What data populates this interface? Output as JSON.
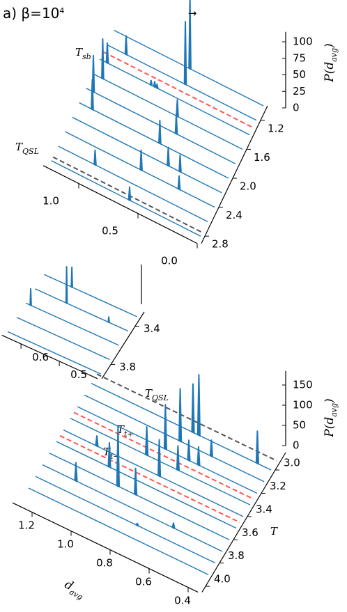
{
  "chart_data": [
    {
      "type": "ridge3d",
      "title": {
        "main": "a) β=10",
        "sup": "4"
      },
      "arrow": "→",
      "zlabel": {
        "main": "P(d",
        "sub": "avg",
        "end": ")"
      },
      "xlim": [
        0,
        1.3
      ],
      "xticks": [
        {
          "value": 0,
          "label": "0.0"
        },
        0.5,
        {
          "value": 1,
          "label": "1.0"
        }
      ],
      "ylim": [
        1.0,
        2.9
      ],
      "yticks": [
        1.2,
        1.6,
        {
          "value": 2,
          "label": "2.0"
        },
        2.4,
        2.8
      ],
      "zlim": [
        0,
        115
      ],
      "zticks": [
        0,
        25,
        50,
        75,
        100
      ],
      "color": "#1f77b4",
      "ridges": [
        {
          "T": 1.0,
          "x": [
            0.62
          ],
          "values": [
            110
          ]
        },
        {
          "T": 1.2,
          "x": [
            0.6,
            1.1
          ],
          "values": [
            95,
            28
          ]
        },
        {
          "T": 1.4,
          "x": [
            0.78,
            0.8,
            0.83,
            1.2
          ],
          "values": [
            6,
            8,
            7,
            30
          ]
        },
        {
          "T": 1.6,
          "x": [
            1.18,
            0.55
          ],
          "values": [
            60,
            25
          ]
        },
        {
          "T": 1.8,
          "x": [
            1.2,
            0.5
          ],
          "values": [
            55,
            30
          ]
        },
        {
          "T": 2.0,
          "x": [
            1.15,
            0.58
          ],
          "values": [
            45,
            35
          ]
        },
        {
          "T": 2.2,
          "x": [
            0.45,
            0.35
          ],
          "values": [
            28,
            25
          ]
        },
        {
          "T": 2.4,
          "x": [
            0.62,
            0.3
          ],
          "values": [
            30,
            20
          ]
        },
        {
          "T": 2.6,
          "x": [
            0.95
          ],
          "values": [
            22
          ]
        },
        {
          "T": 2.8,
          "x": [
            0.6
          ],
          "values": [
            20
          ]
        }
      ],
      "markers": [
        {
          "label": {
            "main": "T",
            "sub": "sb"
          },
          "T": 1.3,
          "color": "#ff5555"
        },
        {
          "label": {
            "main": "T",
            "sub": "QSL"
          },
          "T": 2.75,
          "color": "#555555"
        }
      ]
    },
    {
      "type": "ridge3d",
      "color": "#1f77b4",
      "xlim": [
        0.4,
        0.65
      ],
      "xticks": [
        0.5,
        0.6
      ],
      "ylim": [
        3.25,
        3.95
      ],
      "yticks": [
        3.4,
        3.8
      ],
      "zlim": [
        0,
        60
      ],
      "ridges": [
        {
          "T": 3.3,
          "x": [
            0.57
          ],
          "values": [
            30
          ]
        },
        {
          "T": 3.45,
          "x": [
            0.56,
            0.45
          ],
          "values": [
            55,
            8
          ]
        },
        {
          "T": 3.6,
          "x": [
            0.63
          ],
          "values": [
            25
          ]
        },
        {
          "T": 3.75,
          "x": [],
          "values": []
        },
        {
          "T": 3.9,
          "x": [],
          "values": []
        }
      ]
    },
    {
      "type": "ridge3d",
      "color": "#1f77b4",
      "xlabel": {
        "main": "d",
        "sub": "avg"
      },
      "ylabel": "T",
      "zlabel": {
        "main": "P(d",
        "sub": "avg",
        "end": ")"
      },
      "xlim": [
        0.35,
        1.3
      ],
      "xticks": [
        0.4,
        0.6,
        0.8,
        {
          "value": 1,
          "label": "1.0"
        },
        1.2
      ],
      "ylim": [
        2.85,
        4.05
      ],
      "yticks": [
        {
          "value": 3,
          "label": "3.0"
        },
        3.2,
        3.4,
        3.6,
        3.8,
        {
          "value": 4,
          "label": "4.0"
        }
      ],
      "zlim": [
        0,
        185
      ],
      "zticks": [
        0,
        50,
        100,
        150
      ],
      "ridges": [
        {
          "T": 3.0,
          "x": [
            0.42,
            0.72,
            0.75
          ],
          "values": [
            80,
            150,
            120
          ]
        },
        {
          "T": 3.1,
          "x": [
            0.78,
            0.62
          ],
          "values": [
            130,
            40
          ]
        },
        {
          "T": 3.2,
          "x": [
            0.82,
            0.7,
            0.65
          ],
          "values": [
            110,
            50,
            45
          ]
        },
        {
          "T": 3.3,
          "x": [
            0.88,
            0.72
          ],
          "values": [
            70,
            60
          ]
        },
        {
          "T": 3.4,
          "x": [
            1.1,
            0.78
          ],
          "values": [
            25,
            90
          ]
        },
        {
          "T": 3.5,
          "x": [
            1.0
          ],
          "values": [
            60
          ]
        },
        {
          "T": 3.6,
          "x": [
            0.92,
            0.83
          ],
          "values": [
            150,
            65
          ]
        },
        {
          "T": 3.7,
          "x": [
            1.1,
            0.6
          ],
          "values": [
            45,
            12
          ]
        },
        {
          "T": 3.8,
          "x": [
            0.75
          ],
          "values": [
            5
          ]
        },
        {
          "T": 3.9,
          "x": [],
          "values": []
        }
      ],
      "markers": [
        {
          "label": {
            "main": "T",
            "sub": "QSL"
          },
          "T": 2.92,
          "color": "#555555"
        },
        {
          "label": {
            "main": "T",
            "sub": "t+"
          },
          "T": 3.25,
          "color": "#ff5555"
        },
        {
          "label": {
            "main": "T",
            "sub": "t−"
          },
          "T": 3.45,
          "color": "#ff5555"
        }
      ]
    }
  ]
}
